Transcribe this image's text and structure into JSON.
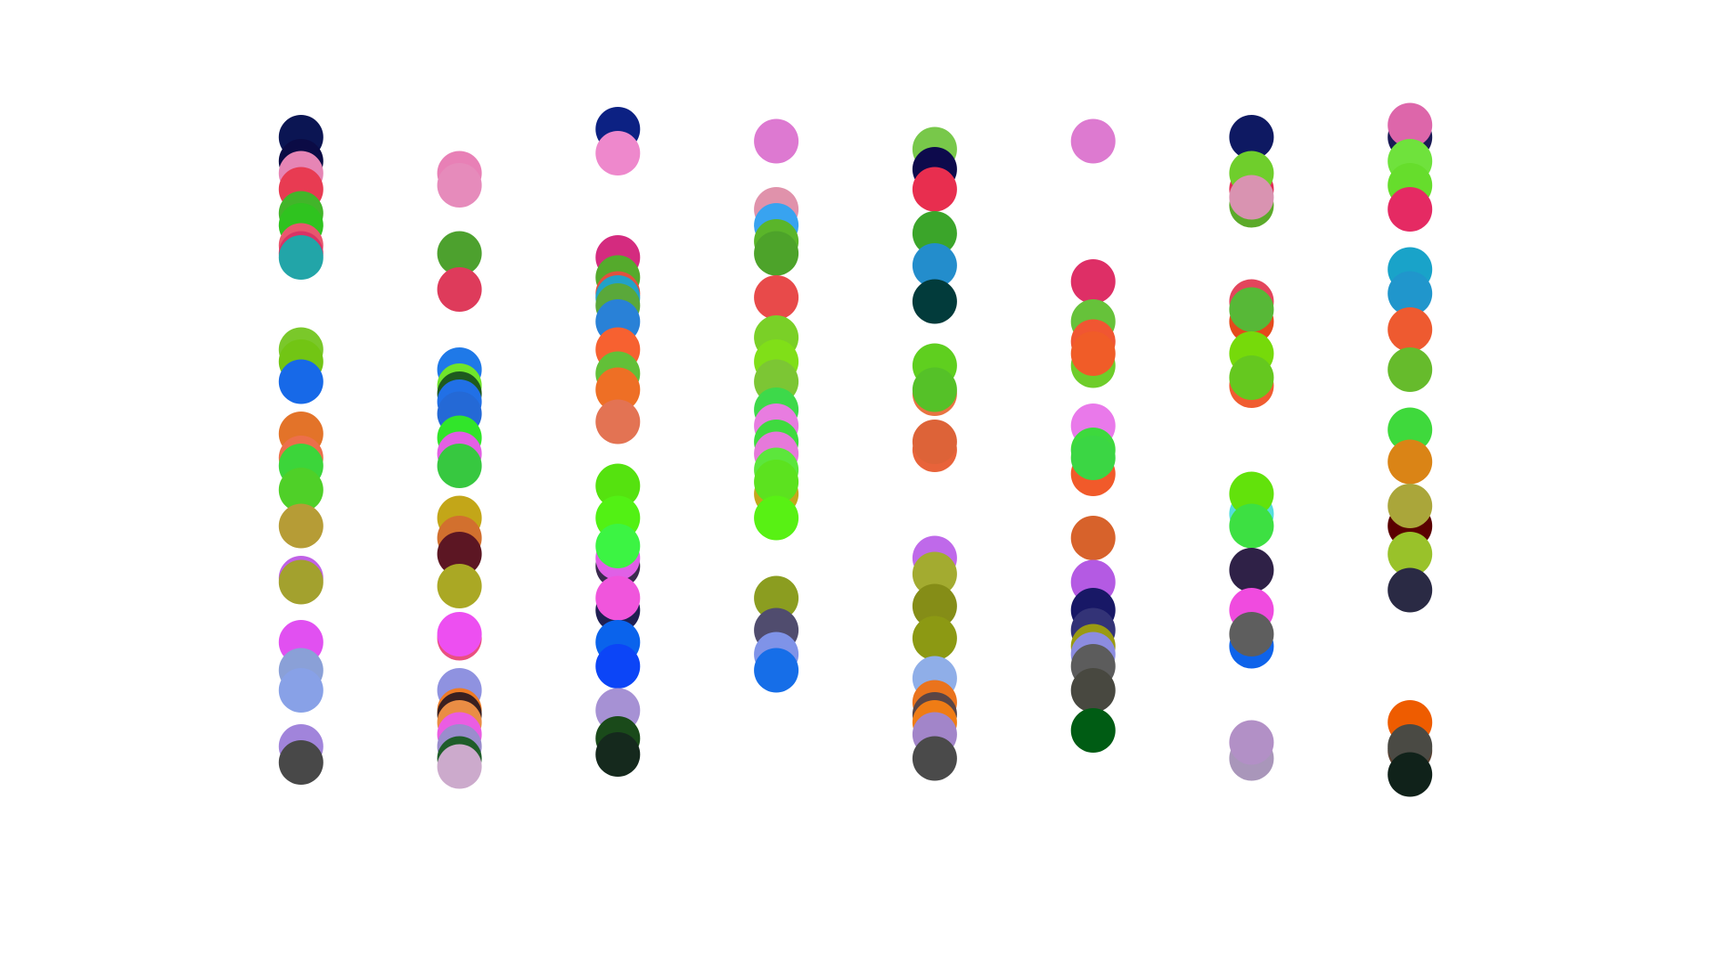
{
  "chart_data": {
    "type": "scatter",
    "title": "",
    "xlabel": "",
    "ylabel": "",
    "axes_visible": false,
    "grid": false,
    "legend": "none",
    "xlim": [
      0,
      9
    ],
    "ylim": [
      0,
      20
    ],
    "series": [
      {
        "x": 1,
        "points": [
          {
            "y": 18.8,
            "color": "#0b1553"
          },
          {
            "y": 18.2,
            "color": "#0b0b45"
          },
          {
            "y": 17.9,
            "color": "#e685b5"
          },
          {
            "y": 17.5,
            "color": "#e83b52"
          },
          {
            "y": 16.9,
            "color": "#42b52a"
          },
          {
            "y": 16.6,
            "color": "#2fc31f"
          },
          {
            "y": 16.1,
            "color": "#e8576e"
          },
          {
            "y": 15.9,
            "color": "#d93366"
          },
          {
            "y": 15.8,
            "color": "#22a5a8"
          },
          {
            "y": 13.5,
            "color": "#7ac82a"
          },
          {
            "y": 13.2,
            "color": "#72c514"
          },
          {
            "y": 12.7,
            "color": "#1769e8"
          },
          {
            "y": 11.4,
            "color": "#e37329"
          },
          {
            "y": 10.8,
            "color": "#ec6f4a"
          },
          {
            "y": 10.6,
            "color": "#3cd53a"
          },
          {
            "y": 10.0,
            "color": "#4fd028"
          },
          {
            "y": 9.1,
            "color": "#b69c36"
          },
          {
            "y": 7.8,
            "color": "#c061e6"
          },
          {
            "y": 7.7,
            "color": "#a3a12e"
          },
          {
            "y": 6.2,
            "color": "#e150f1"
          },
          {
            "y": 5.5,
            "color": "#8aa0d7"
          },
          {
            "y": 5.0,
            "color": "#88a1e7"
          },
          {
            "y": 3.6,
            "color": "#a184db"
          },
          {
            "y": 3.2,
            "color": "#484848"
          }
        ]
      },
      {
        "x": 2,
        "points": [
          {
            "y": 17.9,
            "color": "#e880b6"
          },
          {
            "y": 17.6,
            "color": "#e68bbb"
          },
          {
            "y": 15.9,
            "color": "#4da12e"
          },
          {
            "y": 15.0,
            "color": "#de3b5b"
          },
          {
            "y": 13.0,
            "color": "#1f79e8"
          },
          {
            "y": 12.6,
            "color": "#70e52b"
          },
          {
            "y": 12.4,
            "color": "#1e5a1e"
          },
          {
            "y": 12.2,
            "color": "#2170e6"
          },
          {
            "y": 11.9,
            "color": "#2469d6"
          },
          {
            "y": 11.3,
            "color": "#31e52a"
          },
          {
            "y": 10.9,
            "color": "#e35fe4"
          },
          {
            "y": 10.6,
            "color": "#37c840"
          },
          {
            "y": 9.3,
            "color": "#c3a618"
          },
          {
            "y": 8.8,
            "color": "#d2702e"
          },
          {
            "y": 8.4,
            "color": "#5c1623"
          },
          {
            "y": 7.6,
            "color": "#aaa824"
          },
          {
            "y": 6.3,
            "color": "#e95080"
          },
          {
            "y": 6.4,
            "color": "#ed4ff1"
          },
          {
            "y": 5.0,
            "color": "#8f92e0"
          },
          {
            "y": 4.5,
            "color": "#ee7b25"
          },
          {
            "y": 4.4,
            "color": "#3a2020"
          },
          {
            "y": 4.2,
            "color": "#ea8d44"
          },
          {
            "y": 3.9,
            "color": "#ea5de3"
          },
          {
            "y": 3.6,
            "color": "#9a8ccd"
          },
          {
            "y": 3.3,
            "color": "#1f5d2a"
          },
          {
            "y": 3.1,
            "color": "#ccaacc"
          }
        ]
      },
      {
        "x": 3,
        "points": [
          {
            "y": 19.0,
            "color": "#0c2183"
          },
          {
            "y": 18.4,
            "color": "#ee88cc"
          },
          {
            "y": 15.8,
            "color": "#d42b7f"
          },
          {
            "y": 15.3,
            "color": "#55aa2c"
          },
          {
            "y": 14.9,
            "color": "#e05140"
          },
          {
            "y": 14.8,
            "color": "#23a1c8"
          },
          {
            "y": 14.6,
            "color": "#5aa83a"
          },
          {
            "y": 14.2,
            "color": "#2981d7"
          },
          {
            "y": 13.5,
            "color": "#f76130"
          },
          {
            "y": 12.9,
            "color": "#62c038"
          },
          {
            "y": 12.5,
            "color": "#ee6f25"
          },
          {
            "y": 11.7,
            "color": "#e37353"
          },
          {
            "y": 10.1,
            "color": "#55e20f"
          },
          {
            "y": 9.3,
            "color": "#52f114"
          },
          {
            "y": 8.1,
            "color": "#3a2a4e"
          },
          {
            "y": 8.3,
            "color": "#e060e6"
          },
          {
            "y": 8.6,
            "color": "#3cf443"
          },
          {
            "y": 7.0,
            "color": "#1f1f52"
          },
          {
            "y": 7.3,
            "color": "#f055dc"
          },
          {
            "y": 6.2,
            "color": "#0a63ec"
          },
          {
            "y": 5.6,
            "color": "#0c45f7"
          },
          {
            "y": 4.5,
            "color": "#a691d4"
          },
          {
            "y": 3.8,
            "color": "#1a4a1a"
          },
          {
            "y": 3.4,
            "color": "#15291d"
          }
        ]
      },
      {
        "x": 4,
        "points": [
          {
            "y": 18.7,
            "color": "#dd79d1"
          },
          {
            "y": 17.0,
            "color": "#e092ab"
          },
          {
            "y": 16.6,
            "color": "#38a3f0"
          },
          {
            "y": 16.2,
            "color": "#5ab52a"
          },
          {
            "y": 15.9,
            "color": "#4da32a"
          },
          {
            "y": 14.8,
            "color": "#e84a4a"
          },
          {
            "y": 13.8,
            "color": "#7ad027"
          },
          {
            "y": 13.2,
            "color": "#80df18"
          },
          {
            "y": 12.7,
            "color": "#7cc634"
          },
          {
            "y": 12.0,
            "color": "#3dd94a"
          },
          {
            "y": 11.6,
            "color": "#e87ce0"
          },
          {
            "y": 11.2,
            "color": "#3fda3f"
          },
          {
            "y": 10.9,
            "color": "#e679da"
          },
          {
            "y": 10.5,
            "color": "#5ce63c"
          },
          {
            "y": 9.9,
            "color": "#c4a71c"
          },
          {
            "y": 10.2,
            "color": "#5ce21f"
          },
          {
            "y": 9.3,
            "color": "#58f114"
          },
          {
            "y": 7.3,
            "color": "#8b9d20"
          },
          {
            "y": 6.5,
            "color": "#504c6e"
          },
          {
            "y": 5.9,
            "color": "#7f93e8"
          },
          {
            "y": 5.5,
            "color": "#166ee8"
          }
        ]
      },
      {
        "x": 5,
        "points": [
          {
            "y": 18.5,
            "color": "#78c84a"
          },
          {
            "y": 18.0,
            "color": "#0d0a4c"
          },
          {
            "y": 17.5,
            "color": "#e82e4f"
          },
          {
            "y": 16.4,
            "color": "#3ba52a"
          },
          {
            "y": 15.6,
            "color": "#238dcc"
          },
          {
            "y": 14.7,
            "color": "#023b3b"
          },
          {
            "y": 13.1,
            "color": "#5fcf1f"
          },
          {
            "y": 12.4,
            "color": "#e87341"
          },
          {
            "y": 12.5,
            "color": "#55c128"
          },
          {
            "y": 11.0,
            "color": "#e8633a"
          },
          {
            "y": 11.2,
            "color": "#dd6338"
          },
          {
            "y": 8.3,
            "color": "#bf69ea"
          },
          {
            "y": 7.9,
            "color": "#a3ab30"
          },
          {
            "y": 7.1,
            "color": "#858d17"
          },
          {
            "y": 6.3,
            "color": "#8c9913"
          },
          {
            "y": 5.3,
            "color": "#8faee8"
          },
          {
            "y": 4.7,
            "color": "#ea731c"
          },
          {
            "y": 4.4,
            "color": "#5a4545"
          },
          {
            "y": 4.2,
            "color": "#ef7c15"
          },
          {
            "y": 3.9,
            "color": "#a285c9"
          },
          {
            "y": 3.3,
            "color": "#4a4a4a"
          }
        ]
      },
      {
        "x": 6,
        "points": [
          {
            "y": 18.7,
            "color": "#dd7ad0"
          },
          {
            "y": 15.2,
            "color": "#de2f66"
          },
          {
            "y": 14.2,
            "color": "#66c23a"
          },
          {
            "y": 13.7,
            "color": "#f05632"
          },
          {
            "y": 13.1,
            "color": "#6ecd2a"
          },
          {
            "y": 13.4,
            "color": "#f05c28"
          },
          {
            "y": 11.6,
            "color": "#e979ea"
          },
          {
            "y": 11.0,
            "color": "#3dd93d"
          },
          {
            "y": 10.4,
            "color": "#f15a2a"
          },
          {
            "y": 10.8,
            "color": "#3bd644"
          },
          {
            "y": 8.8,
            "color": "#d7622b"
          },
          {
            "y": 7.7,
            "color": "#b45ae3"
          },
          {
            "y": 7.0,
            "color": "#181866"
          },
          {
            "y": 6.5,
            "color": "#333377"
          },
          {
            "y": 6.1,
            "color": "#9a9a12"
          },
          {
            "y": 5.9,
            "color": "#8c8ce0"
          },
          {
            "y": 5.6,
            "color": "#5c5c5c"
          },
          {
            "y": 5.0,
            "color": "#484840"
          },
          {
            "y": 4.0,
            "color": "#005c14"
          }
        ]
      },
      {
        "x": 7,
        "points": [
          {
            "y": 18.8,
            "color": "#0e1962"
          },
          {
            "y": 17.5,
            "color": "#e22b55"
          },
          {
            "y": 17.1,
            "color": "#5caa2a"
          },
          {
            "y": 17.9,
            "color": "#6fce2c"
          },
          {
            "y": 17.3,
            "color": "#d993b1"
          },
          {
            "y": 14.2,
            "color": "#e44a1c"
          },
          {
            "y": 14.7,
            "color": "#e3455c"
          },
          {
            "y": 14.5,
            "color": "#57b837"
          },
          {
            "y": 13.4,
            "color": "#76da0a"
          },
          {
            "y": 12.6,
            "color": "#f05c30"
          },
          {
            "y": 12.8,
            "color": "#65c81f"
          },
          {
            "y": 9.4,
            "color": "#55dddd"
          },
          {
            "y": 9.9,
            "color": "#62e20b"
          },
          {
            "y": 9.1,
            "color": "#3de042"
          },
          {
            "y": 8.0,
            "color": "#2f2147"
          },
          {
            "y": 6.1,
            "color": "#0e63ea"
          },
          {
            "y": 7.0,
            "color": "#f04bdf"
          },
          {
            "y": 6.4,
            "color": "#5e5e5e"
          },
          {
            "y": 3.3,
            "color": "#a996ba"
          },
          {
            "y": 3.7,
            "color": "#b290c6"
          }
        ]
      },
      {
        "x": 8,
        "points": [
          {
            "y": 18.8,
            "color": "#1a1a55"
          },
          {
            "y": 19.1,
            "color": "#dd66aa"
          },
          {
            "y": 18.2,
            "color": "#6fe23c"
          },
          {
            "y": 17.6,
            "color": "#66dd2c"
          },
          {
            "y": 17.0,
            "color": "#e52a63"
          },
          {
            "y": 15.5,
            "color": "#19a3c9"
          },
          {
            "y": 14.9,
            "color": "#2096cc"
          },
          {
            "y": 14.0,
            "color": "#ee5a30"
          },
          {
            "y": 13.0,
            "color": "#66bb2c"
          },
          {
            "y": 11.5,
            "color": "#3fd93c"
          },
          {
            "y": 10.7,
            "color": "#da8416"
          },
          {
            "y": 9.1,
            "color": "#5a0000"
          },
          {
            "y": 9.6,
            "color": "#aaa63a"
          },
          {
            "y": 8.4,
            "color": "#99c22a"
          },
          {
            "y": 7.5,
            "color": "#2a2a44"
          },
          {
            "y": 4.2,
            "color": "#ee5c00"
          },
          {
            "y": 3.5,
            "color": "#5a4030"
          },
          {
            "y": 3.6,
            "color": "#4a4a44"
          },
          {
            "y": 2.9,
            "color": "#10221a"
          }
        ]
      }
    ]
  }
}
